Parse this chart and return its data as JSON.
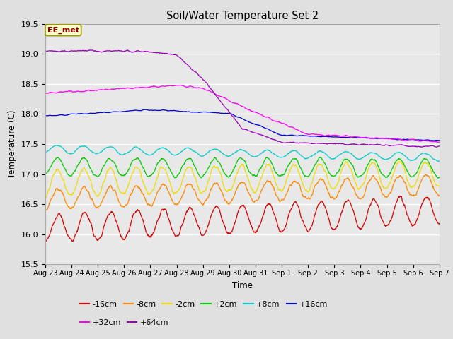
{
  "title": "Soil/Water Temperature Set 2",
  "xlabel": "Time",
  "ylabel": "Temperature (C)",
  "ylim": [
    15.5,
    19.5
  ],
  "fig_bg_color": "#e0e0e0",
  "plot_bg_color": "#e8e8e8",
  "annotation_text": "EE_met",
  "annotation_box_color": "#ffffcc",
  "annotation_box_edge": "#999900",
  "annotation_text_color": "#880000",
  "x_tick_labels": [
    "Aug 23",
    "Aug 24",
    "Aug 25",
    "Aug 26",
    "Aug 27",
    "Aug 28",
    "Aug 29",
    "Aug 30",
    "Aug 31",
    "Sep 1",
    "Sep 2",
    "Sep 3",
    "Sep 4",
    "Sep 5",
    "Sep 6",
    "Sep 7"
  ],
  "series": [
    {
      "label": "-16cm",
      "color": "#dd0000"
    },
    {
      "label": "-8cm",
      "color": "#ff8800"
    },
    {
      "label": "-2cm",
      "color": "#eedd00"
    },
    {
      "label": "+2cm",
      "color": "#00cc00"
    },
    {
      "label": "+8cm",
      "color": "#00cccc"
    },
    {
      "label": "+16cm",
      "color": "#0000dd"
    },
    {
      "label": "+32cm",
      "color": "#ff00ff"
    },
    {
      "label": "+64cm",
      "color": "#9900bb"
    }
  ],
  "grid_color": "#ffffff",
  "n_points": 1440
}
